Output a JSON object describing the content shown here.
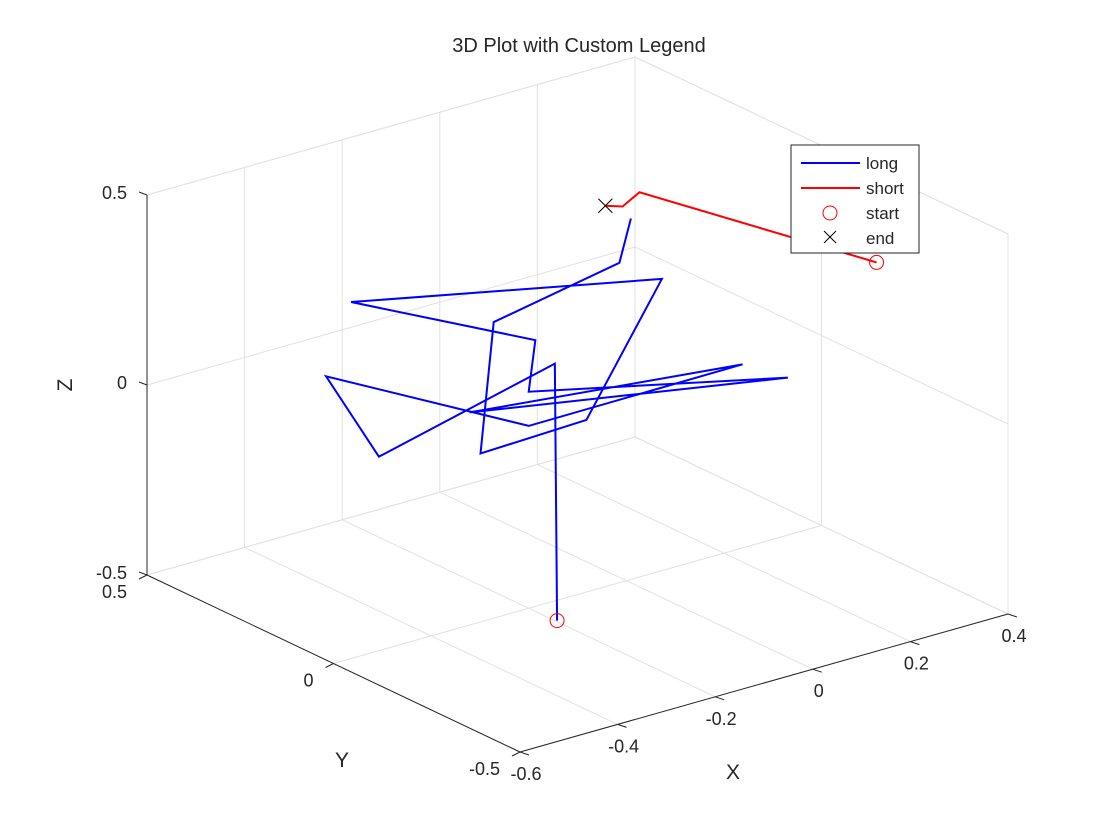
{
  "chart_data": {
    "type": "line3d",
    "title": "3D Plot with Custom Legend",
    "xlabel": "X",
    "ylabel": "Y",
    "zlabel": "Z",
    "x_ticks": [
      "-0.6",
      "-0.4",
      "-0.2",
      "0",
      "0.2",
      "0.4"
    ],
    "y_ticks": [
      "-0.5",
      "0",
      "0.5"
    ],
    "z_ticks": [
      "-0.5",
      "0",
      "0.5"
    ],
    "xlim": [
      -0.6,
      0.4
    ],
    "ylim": [
      -0.5,
      0.5
    ],
    "zlim": [
      -0.5,
      0.5
    ],
    "grid": true,
    "box": "back-planes",
    "legend_position": "top-right",
    "legend": [
      {
        "label": "long",
        "kind": "line",
        "color": "#0000ff"
      },
      {
        "label": "short",
        "kind": "line",
        "color": "#ff0000"
      },
      {
        "label": "start",
        "kind": "marker-circle",
        "color": "#ff0000"
      },
      {
        "label": "end",
        "kind": "marker-x",
        "color": "#000000"
      }
    ],
    "series": [
      {
        "name": "long",
        "color": "#0000ff",
        "points": [
          [
            -0.31,
            -0.22,
            -0.39
          ],
          [
            -0.07,
            0.1,
            0.05
          ],
          [
            -0.27,
            0.31,
            -0.22
          ],
          [
            -0.47,
            0.19,
            0.12
          ],
          [
            -0.2,
            0.0,
            -0.02
          ],
          [
            0.2,
            -0.05,
            0.02
          ],
          [
            -0.26,
            0.08,
            0.0
          ],
          [
            0.14,
            -0.25,
            0.1
          ],
          [
            -0.2,
            0.0,
            0.07
          ],
          [
            0.02,
            0.27,
            0.0
          ],
          [
            -0.35,
            0.28,
            0.23
          ],
          [
            0.05,
            -0.03,
            0.29
          ],
          [
            -0.12,
            -0.05,
            -0.01
          ],
          [
            -0.1,
            0.26,
            -0.25
          ],
          [
            -0.18,
            0.12,
            0.19
          ],
          [
            0.07,
            0.11,
            0.26
          ],
          [
            0.04,
            0.04,
            0.42
          ]
        ]
      },
      {
        "name": "short",
        "color": "#ff0000",
        "points": [
          [
            0.36,
            -0.2,
            0.3
          ],
          [
            0.05,
            0.03,
            0.49
          ],
          [
            0.0,
            0.01,
            0.48
          ],
          [
            -0.02,
            0.03,
            0.48
          ]
        ]
      }
    ],
    "start_markers": [
      [
        -0.31,
        -0.22,
        -0.39
      ],
      [
        0.36,
        -0.2,
        0.3
      ]
    ],
    "end_markers": [
      [
        -0.02,
        0.03,
        0.48
      ]
    ]
  }
}
